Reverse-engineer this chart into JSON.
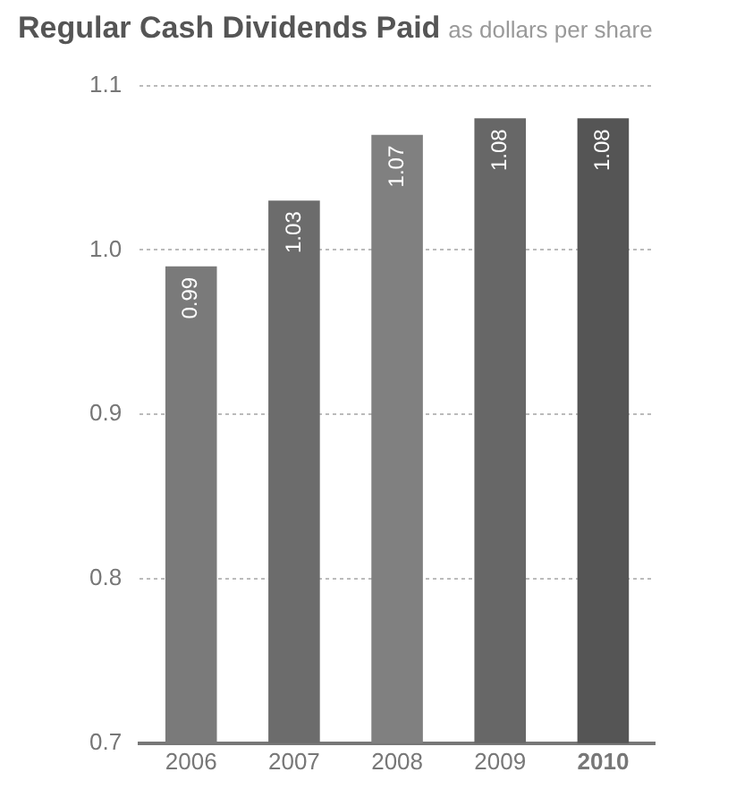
{
  "chart_data": {
    "type": "bar",
    "title": "Regular Cash Dividends Paid",
    "subtitle": "as dollars per share",
    "categories": [
      "2006",
      "2007",
      "2008",
      "2009",
      "2010"
    ],
    "values": [
      0.99,
      1.03,
      1.07,
      1.08,
      1.08
    ],
    "colors": [
      "#7a7a7a",
      "#6c6c6c",
      "#808080",
      "#676767",
      "#555555"
    ],
    "ylim": [
      0.7,
      1.1
    ],
    "yticks": [
      0.7,
      0.8,
      0.9,
      {
        "value": 1,
        "label": "1.0"
      },
      1.1
    ],
    "grid": "y",
    "data_labels": true,
    "legend": false
  }
}
